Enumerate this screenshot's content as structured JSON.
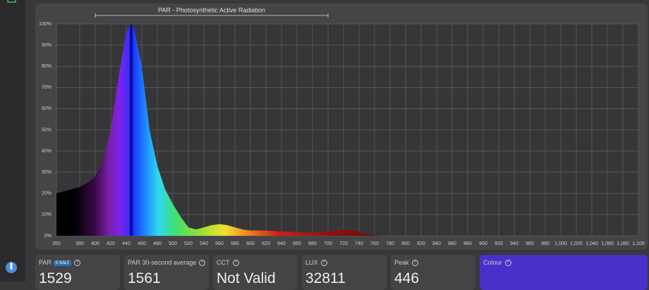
{
  "chart_data": {
    "type": "area",
    "annotation": {
      "text": "PAR - Photosynthetic Active Radiation",
      "x": [
        400,
        700
      ]
    },
    "series": [
      {
        "name": "Spectrum",
        "x": [
          350,
          360,
          370,
          380,
          390,
          400,
          410,
          420,
          430,
          440,
          446,
          450,
          460,
          470,
          480,
          490,
          500,
          510,
          520,
          530,
          540,
          550,
          560,
          570,
          580,
          590,
          600,
          610,
          620,
          630,
          640,
          650,
          660,
          670,
          680,
          690,
          700,
          710,
          720,
          730,
          740,
          750,
          760,
          770,
          780,
          1100
        ],
        "values": [
          20,
          21,
          22,
          23,
          25,
          28,
          35,
          50,
          75,
          96,
          100,
          98,
          80,
          50,
          33,
          22,
          15,
          9,
          4,
          3,
          4,
          5,
          5.5,
          5,
          4,
          3,
          2.5,
          2.5,
          2.5,
          2.3,
          2,
          2,
          1.8,
          1.5,
          1.5,
          1.8,
          2,
          2.5,
          3,
          2.8,
          2,
          1,
          0.3,
          0,
          0,
          0
        ]
      }
    ],
    "xlim": [
      350,
      1100
    ],
    "ylim": [
      0,
      100
    ],
    "xticks": [
      350,
      380,
      400,
      420,
      440,
      460,
      480,
      500,
      520,
      540,
      560,
      580,
      600,
      620,
      640,
      660,
      680,
      700,
      720,
      740,
      760,
      780,
      800,
      820,
      840,
      860,
      880,
      900,
      920,
      940,
      960,
      980,
      {
        "value": 1000,
        "label": "1,000"
      },
      {
        "value": 1020,
        "label": "1,020"
      },
      {
        "value": 1040,
        "label": "1,040"
      },
      {
        "value": 1060,
        "label": "1,060"
      },
      {
        "value": 1080,
        "label": "1,080"
      },
      {
        "value": 1100,
        "label": "1,100"
      }
    ],
    "yticks": [
      {
        "value": 0,
        "label": "0%"
      },
      {
        "value": 10,
        "label": "10%"
      },
      {
        "value": 20,
        "label": "20%"
      },
      {
        "value": 30,
        "label": "30%"
      },
      {
        "value": 40,
        "label": "40%"
      },
      {
        "value": 50,
        "label": "50%"
      },
      {
        "value": 60,
        "label": "60%"
      },
      {
        "value": 70,
        "label": "70%"
      },
      {
        "value": 80,
        "label": "80%"
      },
      {
        "value": 90,
        "label": "90%"
      },
      {
        "value": 100,
        "label": "100%"
      }
    ],
    "grid": true
  },
  "cards": [
    {
      "label": "PAR",
      "badge": "0 SALT",
      "value": 1529
    },
    {
      "label": "PAR 30-second average",
      "value": 1561
    },
    {
      "label": "CCT",
      "value": "Not Valid"
    },
    {
      "label": "LUX",
      "value": 32811
    },
    {
      "label": "Peak",
      "value": 446
    },
    {
      "label": "Colour",
      "color": "#4a2fc9"
    }
  ]
}
